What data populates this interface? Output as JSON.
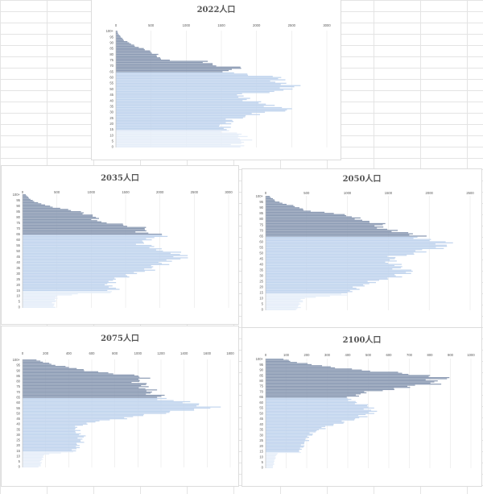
{
  "colors": {
    "elderly": "#8c9bb4",
    "working": "#c2d5ee",
    "youth": "#e6eef9",
    "background_grid": "#e4e4e4"
  },
  "chart_data": [
    {
      "id": "chart-2022",
      "type": "bar",
      "orientation": "horizontal",
      "title": "2022人口",
      "x_ticks": [
        "0",
        "500",
        "1000",
        "1500",
        "2000",
        "2500",
        "3000"
      ],
      "xlim": [
        0,
        3000
      ],
      "age_labels": [
        "0",
        "5",
        "10",
        "15",
        "20",
        "25",
        "30",
        "35",
        "40",
        "45",
        "50",
        "55",
        "60",
        "65",
        "70",
        "75",
        "80",
        "85",
        "90",
        "95",
        "100+"
      ],
      "anchors": [
        [
          0,
          1720
        ],
        [
          4,
          1800
        ],
        [
          8,
          1830
        ],
        [
          10,
          1780
        ],
        [
          13,
          1620
        ],
        [
          15,
          1550
        ],
        [
          19,
          1540
        ],
        [
          23,
          1640
        ],
        [
          27,
          1860
        ],
        [
          29,
          2060
        ],
        [
          31,
          2280
        ],
        [
          32,
          2480
        ],
        [
          34,
          2380
        ],
        [
          36,
          2150
        ],
        [
          39,
          2000
        ],
        [
          42,
          1800
        ],
        [
          45,
          1760
        ],
        [
          47,
          2050
        ],
        [
          49,
          2420
        ],
        [
          51,
          2500
        ],
        [
          53,
          2480
        ],
        [
          55,
          2380
        ],
        [
          58,
          2240
        ],
        [
          60,
          2400
        ],
        [
          62,
          2000
        ],
        [
          64,
          1600
        ],
        [
          66,
          1580
        ],
        [
          68,
          1820
        ],
        [
          70,
          1460
        ],
        [
          72,
          1360
        ],
        [
          74,
          1240
        ],
        [
          75,
          740
        ],
        [
          77,
          620
        ],
        [
          80,
          560
        ],
        [
          83,
          480
        ],
        [
          86,
          320
        ],
        [
          89,
          220
        ],
        [
          92,
          120
        ],
        [
          95,
          70
        ],
        [
          98,
          30
        ],
        [
          100,
          20
        ]
      ]
    },
    {
      "id": "chart-2035",
      "type": "bar",
      "orientation": "horizontal",
      "title": "2035人口",
      "x_ticks": [
        "0",
        "500",
        "1000",
        "1500",
        "2000",
        "2500",
        "3000"
      ],
      "xlim": [
        0,
        3000
      ],
      "age_labels": [
        "0",
        "5",
        "10",
        "15",
        "20",
        "25",
        "30",
        "35",
        "40",
        "45",
        "50",
        "55",
        "60",
        "65",
        "70",
        "75",
        "80",
        "85",
        "90",
        "95",
        "100+"
      ],
      "anchors": [
        [
          0,
          450
        ],
        [
          6,
          470
        ],
        [
          10,
          520
        ],
        [
          12,
          820
        ],
        [
          13,
          1280
        ],
        [
          16,
          1340
        ],
        [
          18,
          1300
        ],
        [
          21,
          1240
        ],
        [
          24,
          1320
        ],
        [
          28,
          1500
        ],
        [
          31,
          1700
        ],
        [
          34,
          1860
        ],
        [
          37,
          1940
        ],
        [
          40,
          2080
        ],
        [
          42,
          2180
        ],
        [
          44,
          2280
        ],
        [
          46,
          2400
        ],
        [
          48,
          2200
        ],
        [
          51,
          2040
        ],
        [
          54,
          1840
        ],
        [
          57,
          1750
        ],
        [
          60,
          1760
        ],
        [
          62,
          2000
        ],
        [
          64,
          2080
        ],
        [
          66,
          1800
        ],
        [
          68,
          1760
        ],
        [
          70,
          1780
        ],
        [
          72,
          1620
        ],
        [
          74,
          1400
        ],
        [
          76,
          1100
        ],
        [
          78,
          1080
        ],
        [
          80,
          1060
        ],
        [
          82,
          980
        ],
        [
          84,
          900
        ],
        [
          86,
          720
        ],
        [
          88,
          560
        ],
        [
          90,
          380
        ],
        [
          93,
          220
        ],
        [
          96,
          110
        ],
        [
          100,
          50
        ]
      ]
    },
    {
      "id": "chart-2050",
      "type": "bar",
      "orientation": "horizontal",
      "title": "2050人口",
      "x_ticks": [
        "0",
        "500",
        "1000",
        "1500",
        "2000",
        "2500"
      ],
      "xlim": [
        0,
        2500
      ],
      "age_labels": [
        "0",
        "5",
        "10",
        "15",
        "20",
        "25",
        "30",
        "35",
        "40",
        "45",
        "50",
        "55",
        "60",
        "65",
        "70",
        "75",
        "80",
        "85",
        "90",
        "95",
        "100+"
      ],
      "anchors": [
        [
          0,
          380
        ],
        [
          3,
          410
        ],
        [
          7,
          430
        ],
        [
          10,
          470
        ],
        [
          12,
          780
        ],
        [
          13,
          940
        ],
        [
          15,
          1020
        ],
        [
          18,
          1080
        ],
        [
          20,
          1140
        ],
        [
          24,
          1280
        ],
        [
          28,
          1520
        ],
        [
          31,
          1680
        ],
        [
          34,
          1760
        ],
        [
          37,
          1640
        ],
        [
          40,
          1580
        ],
        [
          43,
          1520
        ],
        [
          46,
          1560
        ],
        [
          48,
          1680
        ],
        [
          50,
          1840
        ],
        [
          53,
          1980
        ],
        [
          56,
          2180
        ],
        [
          58,
          2240
        ],
        [
          60,
          2140
        ],
        [
          62,
          1960
        ],
        [
          64,
          1880
        ],
        [
          66,
          1800
        ],
        [
          68,
          1760
        ],
        [
          70,
          1520
        ],
        [
          72,
          1400
        ],
        [
          75,
          1420
        ],
        [
          77,
          1320
        ],
        [
          79,
          1200
        ],
        [
          81,
          1080
        ],
        [
          83,
          1020
        ],
        [
          85,
          880
        ],
        [
          87,
          520
        ],
        [
          90,
          420
        ],
        [
          93,
          260
        ],
        [
          96,
          120
        ],
        [
          100,
          50
        ]
      ]
    },
    {
      "id": "chart-2075",
      "type": "bar",
      "orientation": "horizontal",
      "title": "2075人口",
      "x_ticks": [
        "0",
        "200",
        "400",
        "600",
        "800",
        "1000",
        "1200",
        "1400",
        "1600",
        "1800"
      ],
      "xlim": [
        0,
        1800
      ],
      "age_labels": [
        "0",
        "5",
        "10",
        "15",
        "20",
        "25",
        "30",
        "35",
        "40",
        "45",
        "50",
        "55",
        "60",
        "65",
        "70",
        "75",
        "80",
        "85",
        "90",
        "95",
        "100+"
      ],
      "anchors": [
        [
          0,
          150
        ],
        [
          4,
          160
        ],
        [
          8,
          170
        ],
        [
          10,
          180
        ],
        [
          12,
          220
        ],
        [
          14,
          440
        ],
        [
          16,
          460
        ],
        [
          18,
          470
        ],
        [
          20,
          480
        ],
        [
          23,
          500
        ],
        [
          26,
          510
        ],
        [
          29,
          520
        ],
        [
          32,
          480
        ],
        [
          35,
          460
        ],
        [
          37,
          470
        ],
        [
          39,
          500
        ],
        [
          42,
          620
        ],
        [
          45,
          840
        ],
        [
          48,
          1040
        ],
        [
          51,
          1240
        ],
        [
          53,
          1460
        ],
        [
          55,
          1620
        ],
        [
          57,
          1580
        ],
        [
          59,
          1520
        ],
        [
          61,
          1360
        ],
        [
          63,
          1240
        ],
        [
          65,
          1200
        ],
        [
          67,
          1160
        ],
        [
          69,
          1120
        ],
        [
          71,
          1100
        ],
        [
          73,
          1080
        ],
        [
          75,
          1060
        ],
        [
          77,
          1040
        ],
        [
          79,
          1020
        ],
        [
          81,
          1000
        ],
        [
          83,
          1040
        ],
        [
          85,
          1060
        ],
        [
          87,
          800
        ],
        [
          89,
          640
        ],
        [
          92,
          460
        ],
        [
          95,
          300
        ],
        [
          98,
          180
        ],
        [
          100,
          120
        ]
      ]
    },
    {
      "id": "chart-2100",
      "type": "bar",
      "orientation": "horizontal",
      "title": "2100人口",
      "x_ticks": [
        "0",
        "100",
        "200",
        "300",
        "400",
        "500",
        "600",
        "700",
        "800",
        "900",
        "1000"
      ],
      "xlim": [
        0,
        1000
      ],
      "age_labels": [
        "0",
        "5",
        "10",
        "15",
        "20",
        "25",
        "30",
        "35",
        "40",
        "45",
        "50",
        "55",
        "60",
        "65",
        "70",
        "75",
        "80",
        "85",
        "90",
        "95",
        "100+"
      ],
      "anchors": [
        [
          0,
          35
        ],
        [
          4,
          40
        ],
        [
          8,
          45
        ],
        [
          11,
          50
        ],
        [
          13,
          60
        ],
        [
          14,
          160
        ],
        [
          16,
          170
        ],
        [
          18,
          175
        ],
        [
          20,
          180
        ],
        [
          23,
          190
        ],
        [
          26,
          200
        ],
        [
          29,
          210
        ],
        [
          32,
          230
        ],
        [
          35,
          260
        ],
        [
          38,
          300
        ],
        [
          41,
          360
        ],
        [
          44,
          420
        ],
        [
          47,
          470
        ],
        [
          50,
          510
        ],
        [
          53,
          520
        ],
        [
          56,
          500
        ],
        [
          59,
          470
        ],
        [
          61,
          420
        ],
        [
          63,
          400
        ],
        [
          65,
          420
        ],
        [
          67,
          440
        ],
        [
          69,
          480
        ],
        [
          71,
          560
        ],
        [
          73,
          640
        ],
        [
          75,
          720
        ],
        [
          77,
          800
        ],
        [
          79,
          820
        ],
        [
          81,
          840
        ],
        [
          83,
          860
        ],
        [
          85,
          780
        ],
        [
          87,
          680
        ],
        [
          89,
          520
        ],
        [
          91,
          420
        ],
        [
          93,
          300
        ],
        [
          96,
          200
        ],
        [
          98,
          120
        ],
        [
          100,
          90
        ]
      ]
    }
  ]
}
